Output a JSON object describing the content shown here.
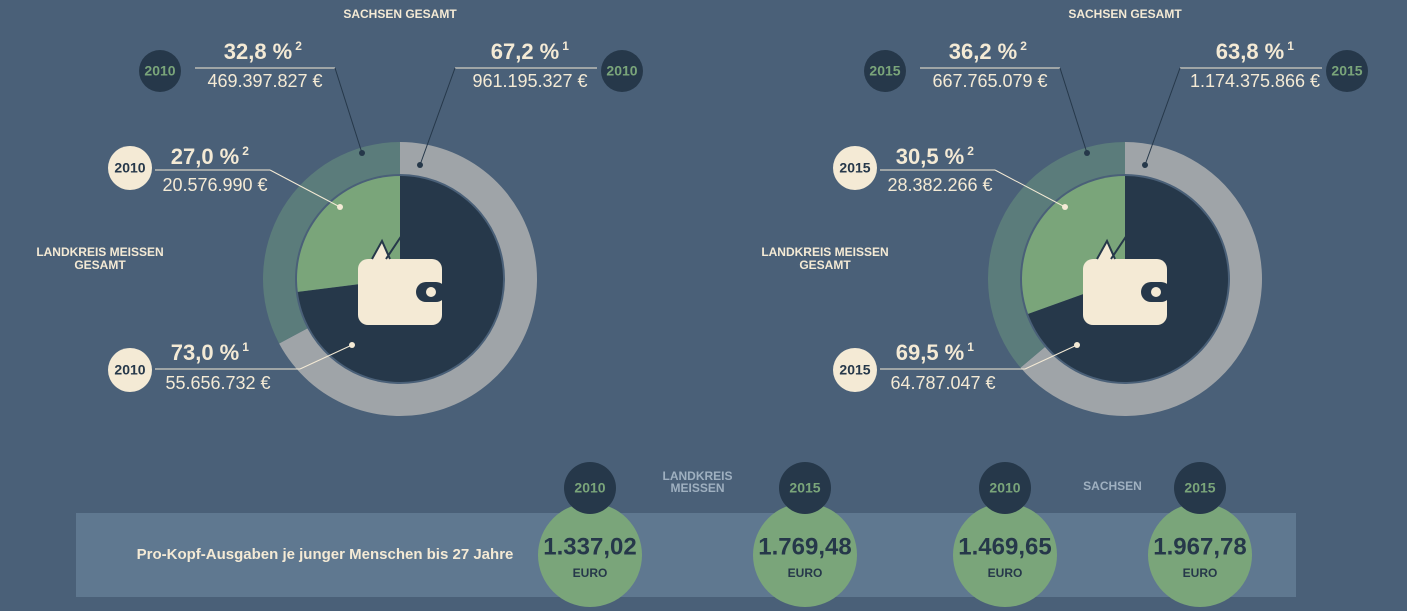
{
  "chart_data": [
    {
      "type": "donut",
      "title": "SACHSEN GESAMT",
      "inner_title": "LANDKREIS MEISSEN GESAMT",
      "year": "2010",
      "outer": {
        "values": [
          67.2,
          32.8
        ],
        "value_labels": [
          "67,2 %",
          "32,8 %"
        ],
        "notes": [
          "1",
          "2"
        ],
        "amounts": [
          "961.195.327 €",
          "469.397.827 €"
        ],
        "colors": [
          "#9fa4a8",
          "#5b7c7b"
        ]
      },
      "inner": {
        "values": [
          73.0,
          27.0
        ],
        "value_labels": [
          "73,0 %",
          "27,0 %"
        ],
        "notes": [
          "1",
          "2"
        ],
        "amounts": [
          "55.656.732 €",
          "20.576.990 €"
        ],
        "colors": [
          "#26384a",
          "#7aa57a"
        ]
      }
    },
    {
      "type": "donut",
      "title": "SACHSEN GESAMT",
      "inner_title": "LANDKREIS MEISSEN GESAMT",
      "year": "2015",
      "outer": {
        "values": [
          63.8,
          36.2
        ],
        "value_labels": [
          "63,8 %",
          "36,2 %"
        ],
        "notes": [
          "1",
          "2"
        ],
        "amounts": [
          "1.174.375.866 €",
          "667.765.079 €"
        ],
        "colors": [
          "#9fa4a8",
          "#5b7c7b"
        ]
      },
      "inner": {
        "values": [
          69.5,
          30.5
        ],
        "value_labels": [
          "69,5 %",
          "30,5 %"
        ],
        "notes": [
          "1",
          "2"
        ],
        "amounts": [
          "64.787.047 €",
          "28.382.266 €"
        ],
        "colors": [
          "#26384a",
          "#7aa57a"
        ]
      }
    }
  ],
  "per_capita": {
    "label": "Pro-Kopf-Ausgaben je junger Menschen bis 27 Jahre",
    "unit": "EURO",
    "groups": [
      {
        "name": "LANDKREIS MEISSEN",
        "items": [
          {
            "year": "2010",
            "value": "1.337,02"
          },
          {
            "year": "2015",
            "value": "1.769,48"
          }
        ]
      },
      {
        "name": "SACHSEN",
        "items": [
          {
            "year": "2010",
            "value": "1.469,65"
          },
          {
            "year": "2015",
            "value": "1.967,78"
          }
        ]
      }
    ]
  }
}
